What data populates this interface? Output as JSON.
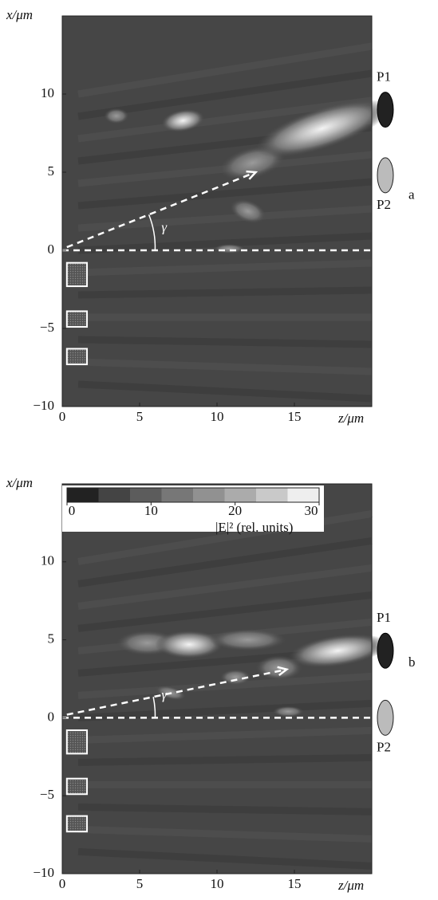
{
  "chart_data": [
    {
      "type": "heatmap",
      "panel": "a",
      "xlabel": "z/μm",
      "ylabel": "x/μm",
      "xlim": [
        0,
        20
      ],
      "ylim": [
        -10,
        15
      ],
      "xticks": [
        0,
        5,
        10,
        15
      ],
      "yticks": [
        {
          "value": -10,
          "label": "−10"
        },
        {
          "value": -5,
          "label": "−5"
        },
        0,
        5,
        10
      ],
      "annotation": "γ",
      "detectors": [
        "P1",
        "P2"
      ]
    },
    {
      "type": "heatmap",
      "panel": "b",
      "xlabel": "z/μm",
      "ylabel": "x/μm",
      "xlim": [
        0,
        20
      ],
      "ylim": [
        -10,
        15
      ],
      "xticks": [
        0,
        5,
        10,
        15
      ],
      "yticks": [
        {
          "value": -10,
          "label": "−10"
        },
        {
          "value": -5,
          "label": "−5"
        },
        0,
        5,
        10
      ],
      "annotation": "γ",
      "detectors": [
        "P1",
        "P2"
      ],
      "colorbar": {
        "label": "|E|² (rel. units)",
        "lim": [
          0,
          30
        ],
        "ticks": [
          0,
          10,
          20,
          30
        ]
      }
    }
  ]
}
